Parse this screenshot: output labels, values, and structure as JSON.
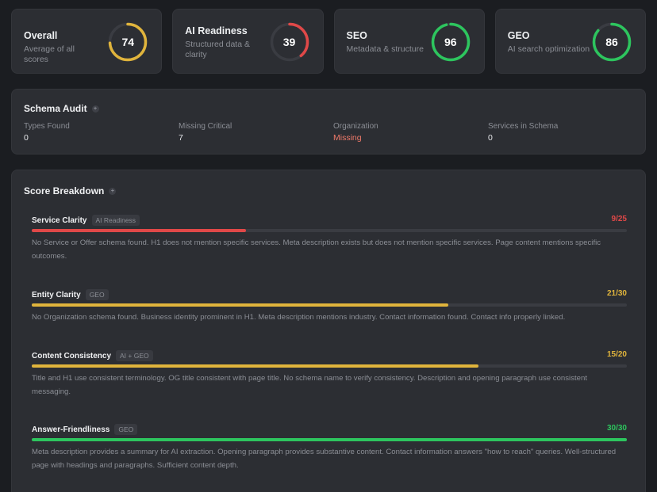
{
  "scores": [
    {
      "label": "Overall",
      "sub": "Average of all scores",
      "value": 74,
      "max": 100,
      "color": "#e0b43c",
      "icon": "progress-ring"
    },
    {
      "label": "AI Readiness",
      "sub": "Structured data & clarity",
      "value": 39,
      "max": 100,
      "color": "#e04848",
      "icon": "progress-ring"
    },
    {
      "label": "SEO",
      "sub": "Metadata & structure",
      "value": 96,
      "max": 100,
      "color": "#2dc55e",
      "icon": "progress-ring"
    },
    {
      "label": "GEO",
      "sub": "AI search optimization",
      "value": 86,
      "max": 100,
      "color": "#2dc55e",
      "icon": "progress-ring"
    }
  ],
  "schema_audit": {
    "title": "Schema Audit",
    "columns": [
      {
        "key": "Types Found",
        "value": "0"
      },
      {
        "key": "Missing Critical",
        "value": "7"
      },
      {
        "key": "Organization",
        "value": "Missing",
        "color": "#f07a6a"
      },
      {
        "key": "Services in Schema",
        "value": "0"
      }
    ]
  },
  "breakdown": {
    "title": "Score Breakdown",
    "items": [
      {
        "name": "Service Clarity",
        "tag": "AI Readiness",
        "score": "9/25",
        "fraction": 0.36,
        "color": "#e04848",
        "desc": "No Service or Offer schema found. H1 does not mention specific services. Meta description exists but does not mention specific services. Page content mentions specific outcomes."
      },
      {
        "name": "Entity Clarity",
        "tag": "GEO",
        "score": "21/30",
        "fraction": 0.7,
        "color": "#e0b43c",
        "desc": "No Organization schema found. Business identity prominent in H1. Meta description mentions industry. Contact information found. Contact info properly linked."
      },
      {
        "name": "Content Consistency",
        "tag": "AI + GEO",
        "score": "15/20",
        "fraction": 0.75,
        "color": "#e0b43c",
        "desc": "Title and H1 use consistent terminology. OG title consistent with page title. No schema name to verify consistency. Description and opening paragraph use consistent messaging."
      },
      {
        "name": "Answer-Friendliness",
        "tag": "GEO",
        "score": "30/30",
        "fraction": 1.0,
        "color": "#2dc55e",
        "desc": "Meta description provides a summary for AI extraction. Opening paragraph provides substantive content. Contact information answers \"how to reach\" queries. Well-structured page with headings and paragraphs. Sufficient content depth."
      }
    ]
  },
  "info_glyph": "+"
}
